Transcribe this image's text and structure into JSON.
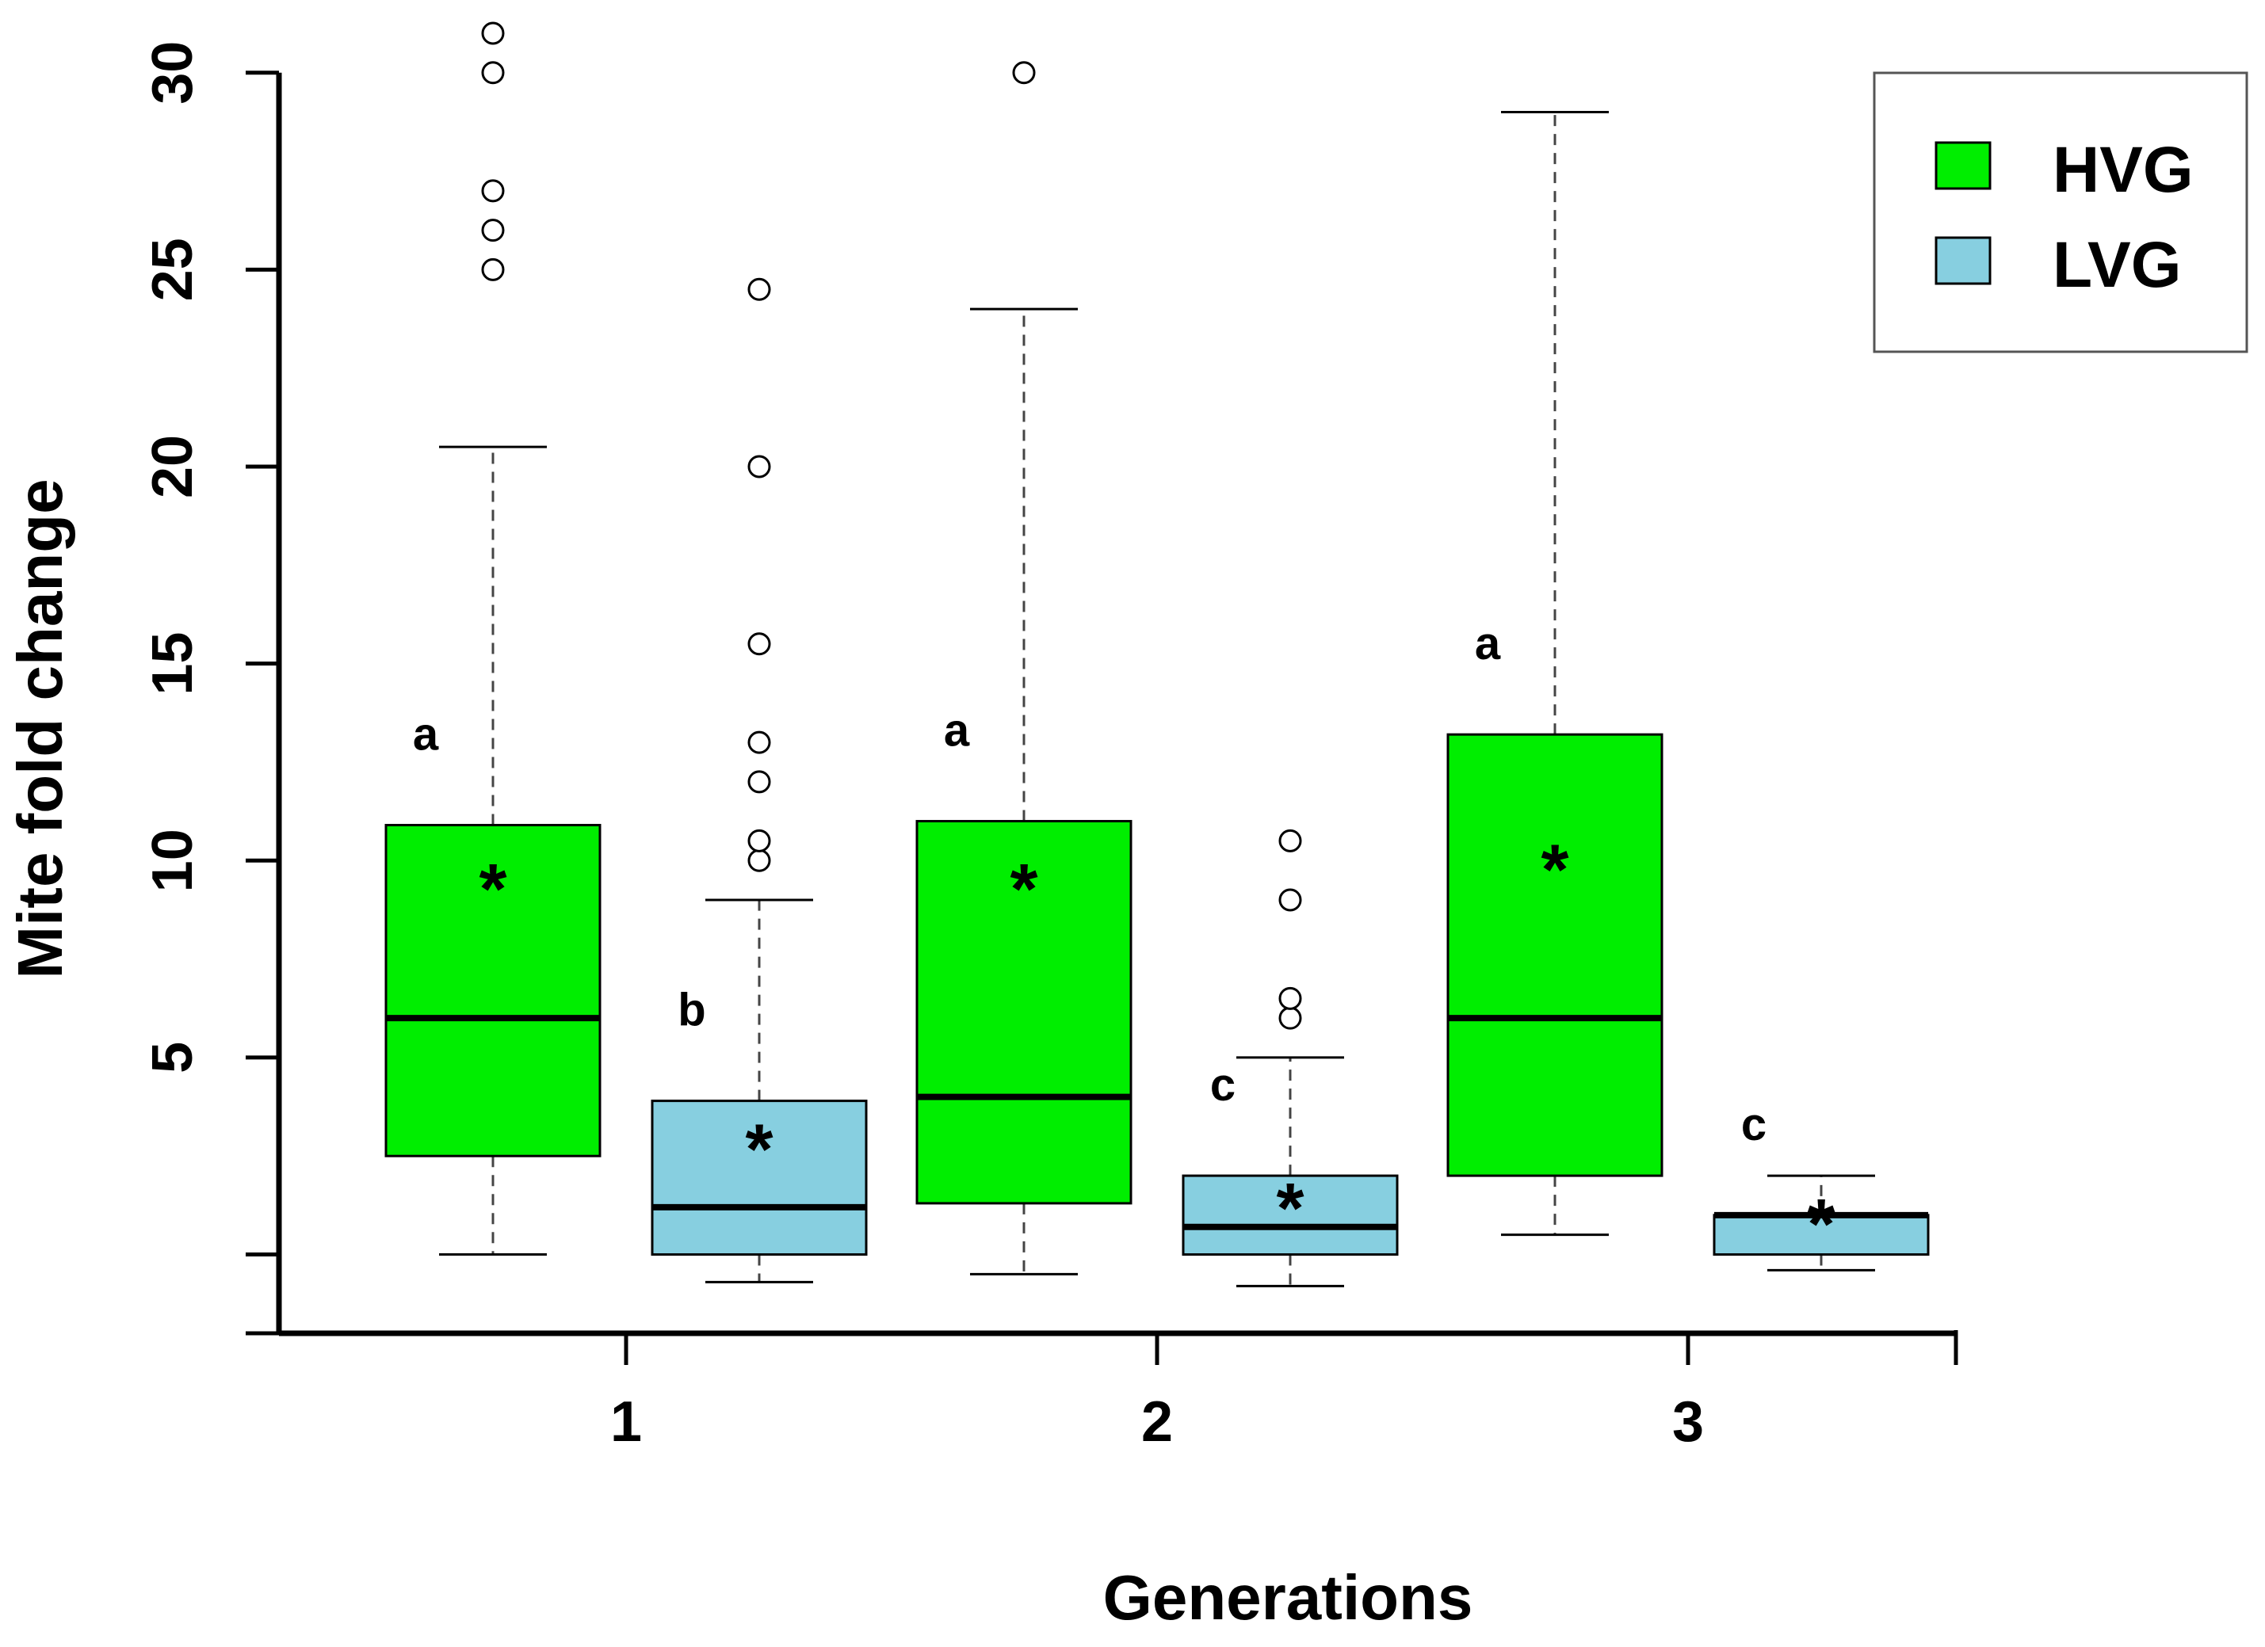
{
  "chart_data": {
    "type": "boxplot",
    "title": "",
    "xlabel": "Generations",
    "ylabel": "Mite fold change",
    "ylim": [
      -2,
      31
    ],
    "yticks": [
      5,
      10,
      15,
      20,
      25,
      30
    ],
    "categories": [
      "1",
      "2",
      "3"
    ],
    "series": [
      {
        "name": "HVG",
        "color": "#00ee00",
        "boxes": [
          {
            "generation": "1",
            "whisker_low": 0,
            "q1": 2.5,
            "median": 6,
            "q3": 10.9,
            "whisker_high": 20.5,
            "mean": 9.7,
            "letter": "a",
            "outliers": [
              25,
              26,
              27,
              30,
              31
            ]
          },
          {
            "generation": "2",
            "whisker_low": -0.5,
            "q1": 1.3,
            "median": 4,
            "q3": 11,
            "whisker_high": 24,
            "mean": 9.7,
            "letter": "a",
            "outliers": [
              30
            ]
          },
          {
            "generation": "3",
            "whisker_low": 0.5,
            "q1": 2,
            "median": 6,
            "q3": 13.2,
            "whisker_high": 29,
            "mean": 10.2,
            "letter": "a",
            "outliers": []
          }
        ]
      },
      {
        "name": "LVG",
        "color": "#87cfe0",
        "boxes": [
          {
            "generation": "1",
            "whisker_low": -0.7,
            "q1": 0,
            "median": 1.2,
            "q3": 3.9,
            "whisker_high": 9,
            "mean": 3.1,
            "letter": "b",
            "outliers": [
              10,
              10.5,
              12,
              13,
              15.5,
              20,
              24.5
            ]
          },
          {
            "generation": "2",
            "whisker_low": -0.8,
            "q1": 0,
            "median": 0.7,
            "q3": 2,
            "whisker_high": 5,
            "mean": 1.6,
            "letter": "c",
            "outliers": [
              6,
              6.5,
              9,
              10.5
            ]
          },
          {
            "generation": "3",
            "whisker_low": -0.4,
            "q1": 0,
            "median": 1,
            "q3": 1,
            "whisker_high": 2,
            "mean": 1.2,
            "letter": "c",
            "outliers": []
          }
        ]
      }
    ],
    "mean_marker": "*",
    "legend": {
      "position": "top-right",
      "entries": [
        "HVG",
        "LVG"
      ]
    }
  }
}
